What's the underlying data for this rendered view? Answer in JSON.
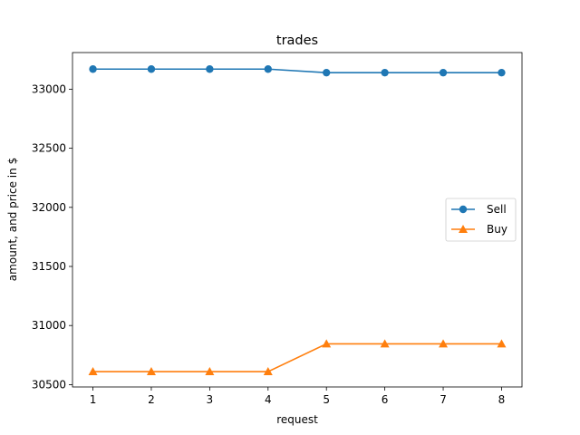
{
  "chart_data": {
    "type": "line",
    "title": "trades",
    "xlabel": "request",
    "ylabel": "amount, and price in $",
    "x": [
      1,
      2,
      3,
      4,
      5,
      6,
      7,
      8
    ],
    "xticks": [
      1,
      2,
      3,
      4,
      5,
      6,
      7,
      8
    ],
    "yticks": [
      30500,
      31000,
      31500,
      32000,
      32500,
      33000
    ],
    "xlim": [
      0.65,
      8.35
    ],
    "ylim": [
      30480,
      33310
    ],
    "grid": false,
    "legend_position": "center-right",
    "series": [
      {
        "name": "Sell",
        "color": "#1f77b4",
        "marker": "circle",
        "values": [
          33170,
          33170,
          33170,
          33170,
          33140,
          33140,
          33140,
          33140
        ]
      },
      {
        "name": "Buy",
        "color": "#ff7f0e",
        "marker": "triangle",
        "values": [
          30610,
          30610,
          30610,
          30610,
          30845,
          30845,
          30845,
          30845
        ]
      }
    ]
  }
}
